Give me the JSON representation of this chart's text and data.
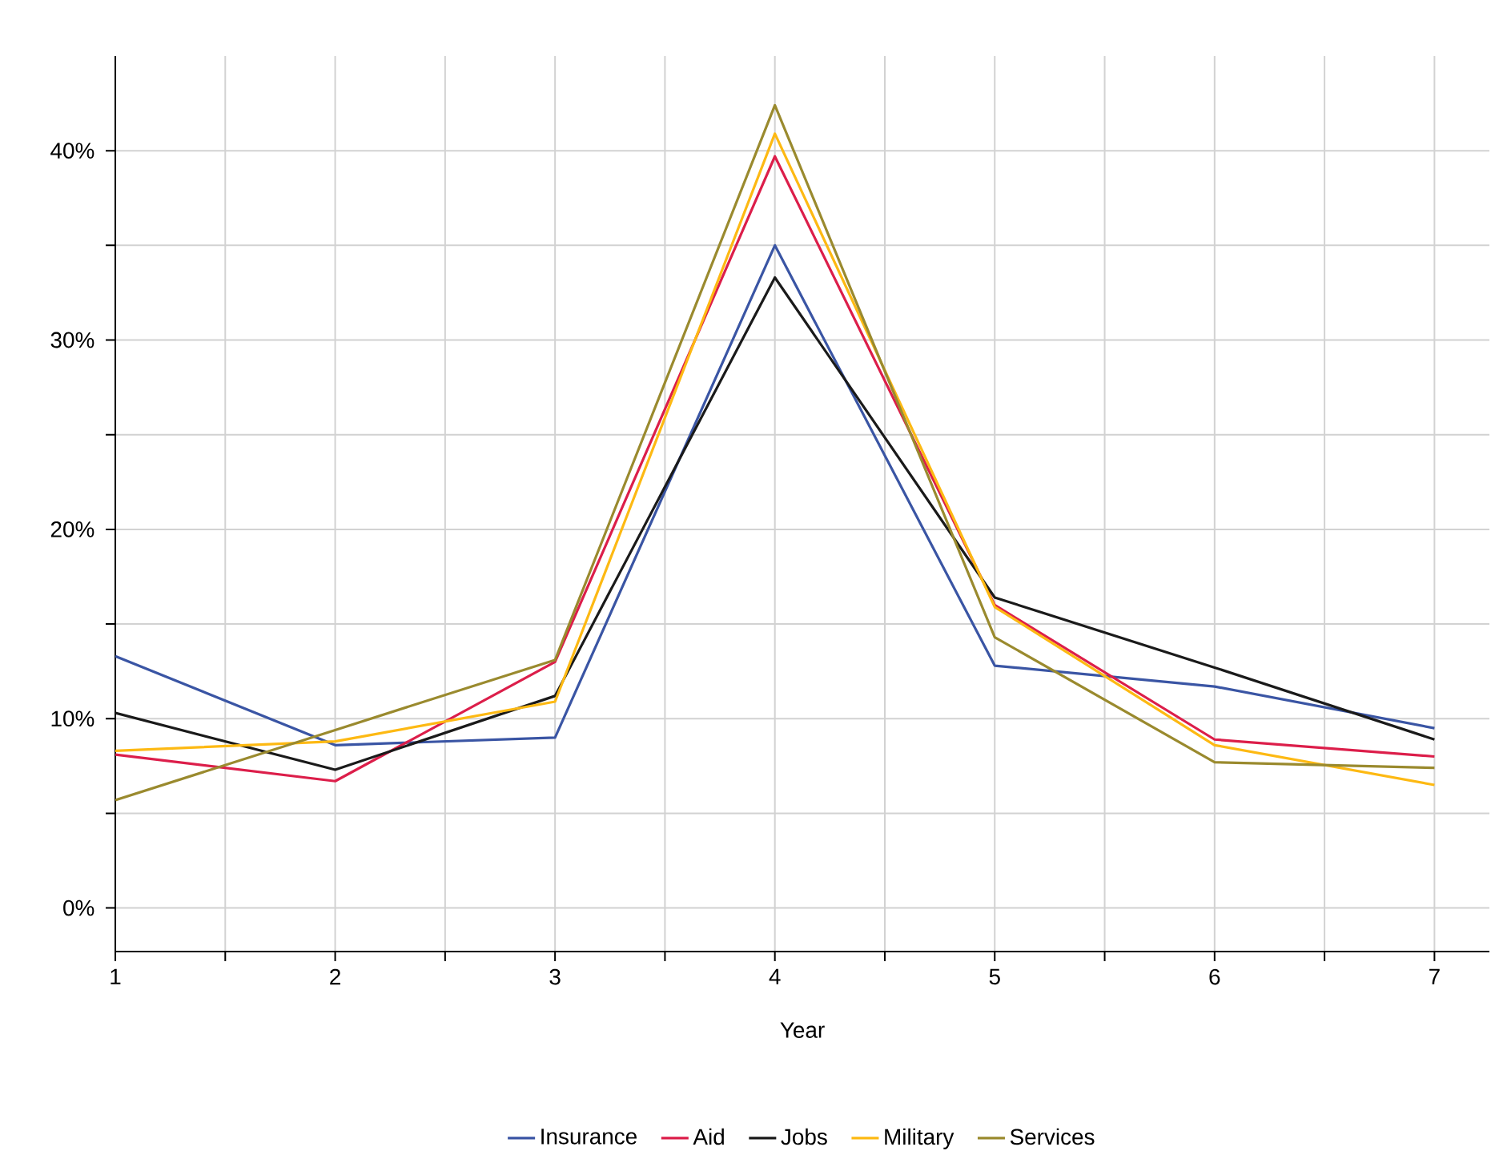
{
  "chart_data": {
    "type": "line",
    "xlabel": "Year",
    "x": [
      1,
      2,
      3,
      4,
      5,
      6,
      7
    ],
    "xlim": [
      1,
      7.25
    ],
    "xticks": [
      1,
      {
        "value": 1.5,
        "label": null
      },
      2,
      {
        "value": 2.5,
        "label": null
      },
      3,
      {
        "value": 3.5,
        "label": null
      },
      4,
      {
        "value": 4.5,
        "label": null
      },
      5,
      {
        "value": 5.5,
        "label": null
      },
      6,
      {
        "value": 6.5,
        "label": null
      },
      7
    ],
    "ylim": [
      -2.3,
      45
    ],
    "yticks": [
      {
        "value": 0,
        "label": "0%"
      },
      {
        "value": 5,
        "label": null
      },
      {
        "value": 10,
        "label": "10%"
      },
      {
        "value": 15,
        "label": null
      },
      {
        "value": 20,
        "label": "20%"
      },
      {
        "value": 25,
        "label": null
      },
      {
        "value": 30,
        "label": "30%"
      },
      {
        "value": 35,
        "label": null
      },
      {
        "value": 40,
        "label": "40%"
      }
    ],
    "grid": true,
    "legend": "bottom",
    "marker": "none",
    "line_style": "solid",
    "series": [
      {
        "name": "Insurance",
        "color": "#3a55a4",
        "values": [
          13.3,
          8.6,
          9.0,
          35.0,
          12.8,
          11.7,
          9.5
        ]
      },
      {
        "name": "Aid",
        "color": "#dc1e4a",
        "values": [
          8.1,
          6.7,
          13.0,
          39.7,
          16.0,
          8.9,
          8.0
        ]
      },
      {
        "name": "Jobs",
        "color": "#1a1a1a",
        "values": [
          10.3,
          7.3,
          11.2,
          33.3,
          16.4,
          12.7,
          8.9
        ]
      },
      {
        "name": "Military",
        "color": "#fdb913",
        "values": [
          8.3,
          8.8,
          10.9,
          40.9,
          15.9,
          8.6,
          6.5
        ]
      },
      {
        "name": "Services",
        "color": "#9a8a2e",
        "values": [
          5.7,
          9.4,
          13.1,
          42.4,
          14.3,
          7.7,
          7.4
        ]
      }
    ]
  }
}
